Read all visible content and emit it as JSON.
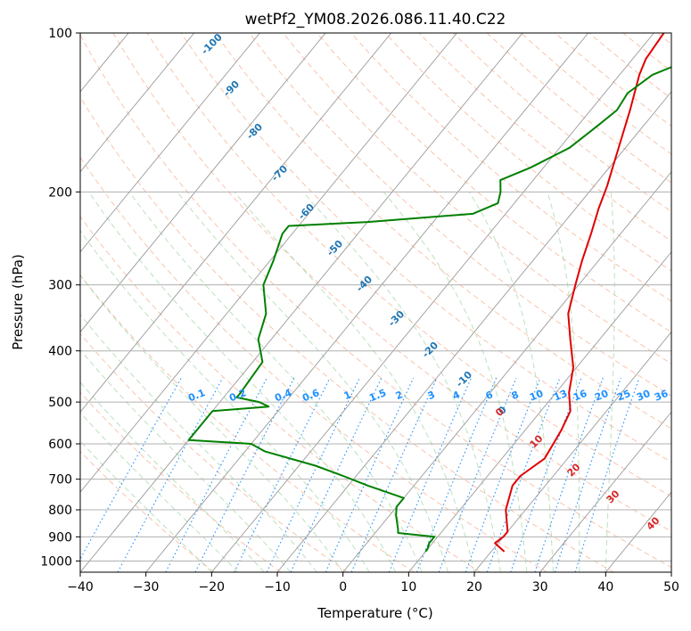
{
  "chart_data": {
    "type": "line",
    "title": "wetPf2_YM08.2026.086.11.40.C22",
    "xlabel": "Temperature (°C)",
    "ylabel": "Pressure (hPa)",
    "xlim": [
      -40,
      50
    ],
    "ylim": [
      1050,
      100
    ],
    "y_scale": "log",
    "grid": true,
    "x_ticks": [
      -40,
      -30,
      -20,
      -10,
      0,
      10,
      20,
      30,
      40,
      50
    ],
    "y_ticks": [
      1000,
      900,
      800,
      700,
      600,
      500,
      400,
      300,
      200,
      100
    ],
    "colors": {
      "temperature": "#e00000",
      "dewpoint": "#008000",
      "isotherm_label": "#1f77b4",
      "mixing_ratio": "#1e90ff",
      "dry_adiabat": "#f4a582",
      "moist_adiabat": "#9fd49f",
      "theta_label": "#d62728"
    },
    "isotherm_labels": [
      "-100",
      "-90",
      "-80",
      "-70",
      "-60",
      "-50",
      "-40",
      "-30",
      "-20",
      "-10",
      "0"
    ],
    "mixing_ratio_labels": [
      "0.1",
      "0.2",
      "0.4",
      "0.6",
      "1",
      "1.5",
      "2",
      "3",
      "4",
      "6",
      "8",
      "10",
      "13",
      "16",
      "20",
      "25",
      "30",
      "36"
    ],
    "theta_labels": [
      "0",
      "10",
      "20",
      "30",
      "40"
    ],
    "series": [
      {
        "name": "",
        "color": "#e00000",
        "points": [
          {
            "p": 960,
            "t": 22.0
          },
          {
            "p": 925,
            "t": 19.5
          },
          {
            "p": 900,
            "t": 20.0
          },
          {
            "p": 880,
            "t": 20.0
          },
          {
            "p": 800,
            "t": 17.0
          },
          {
            "p": 720,
            "t": 15.0
          },
          {
            "p": 690,
            "t": 15.0
          },
          {
            "p": 640,
            "t": 16.5
          },
          {
            "p": 600,
            "t": 16.0
          },
          {
            "p": 565,
            "t": 15.5
          },
          {
            "p": 520,
            "t": 14.5
          },
          {
            "p": 480,
            "t": 12.0
          },
          {
            "p": 430,
            "t": 9.5
          },
          {
            "p": 380,
            "t": 5.5
          },
          {
            "p": 340,
            "t": 2.0
          },
          {
            "p": 300,
            "t": -0.5
          },
          {
            "p": 270,
            "t": -2.5
          },
          {
            "p": 240,
            "t": -4.5
          },
          {
            "p": 215,
            "t": -6.5
          },
          {
            "p": 195,
            "t": -8.0
          },
          {
            "p": 170,
            "t": -10.5
          },
          {
            "p": 140,
            "t": -14.0
          },
          {
            "p": 120,
            "t": -17.0
          },
          {
            "p": 112,
            "t": -18.0
          },
          {
            "p": 100,
            "t": -18.5
          }
        ]
      },
      {
        "name": "",
        "color": "#008000",
        "points": [
          {
            "p": 960,
            "t": 10.0
          },
          {
            "p": 950,
            "t": 10.0
          },
          {
            "p": 925,
            "t": 9.5
          },
          {
            "p": 900,
            "t": 9.5
          },
          {
            "p": 885,
            "t": 3.5
          },
          {
            "p": 870,
            "t": 3.0
          },
          {
            "p": 820,
            "t": 1.0
          },
          {
            "p": 790,
            "t": 0.0
          },
          {
            "p": 760,
            "t": 0.0
          },
          {
            "p": 720,
            "t": -7.0
          },
          {
            "p": 690,
            "t": -12.0
          },
          {
            "p": 660,
            "t": -17.5
          },
          {
            "p": 620,
            "t": -27.0
          },
          {
            "p": 600,
            "t": -30.0
          },
          {
            "p": 590,
            "t": -40.0
          },
          {
            "p": 520,
            "t": -40.0
          },
          {
            "p": 510,
            "t": -32.0
          },
          {
            "p": 500,
            "t": -34.0
          },
          {
            "p": 490,
            "t": -38.0
          },
          {
            "p": 480,
            "t": -38.0
          },
          {
            "p": 420,
            "t": -38.5
          },
          {
            "p": 380,
            "t": -42.0
          },
          {
            "p": 340,
            "t": -44.0
          },
          {
            "p": 300,
            "t": -48.0
          },
          {
            "p": 270,
            "t": -49.5
          },
          {
            "p": 240,
            "t": -51.5
          },
          {
            "p": 232,
            "t": -51.5
          },
          {
            "p": 228,
            "t": -40.0
          },
          {
            "p": 220,
            "t": -25.0
          },
          {
            "p": 210,
            "t": -22.5
          },
          {
            "p": 200,
            "t": -23.5
          },
          {
            "p": 190,
            "t": -25.0
          },
          {
            "p": 180,
            "t": -22.0
          },
          {
            "p": 165,
            "t": -18.5
          },
          {
            "p": 150,
            "t": -17.0
          },
          {
            "p": 140,
            "t": -16.0
          },
          {
            "p": 130,
            "t": -16.5
          },
          {
            "p": 120,
            "t": -15.0
          },
          {
            "p": 110,
            "t": -10.0
          },
          {
            "p": 100,
            "t": -6.5
          }
        ]
      }
    ]
  }
}
